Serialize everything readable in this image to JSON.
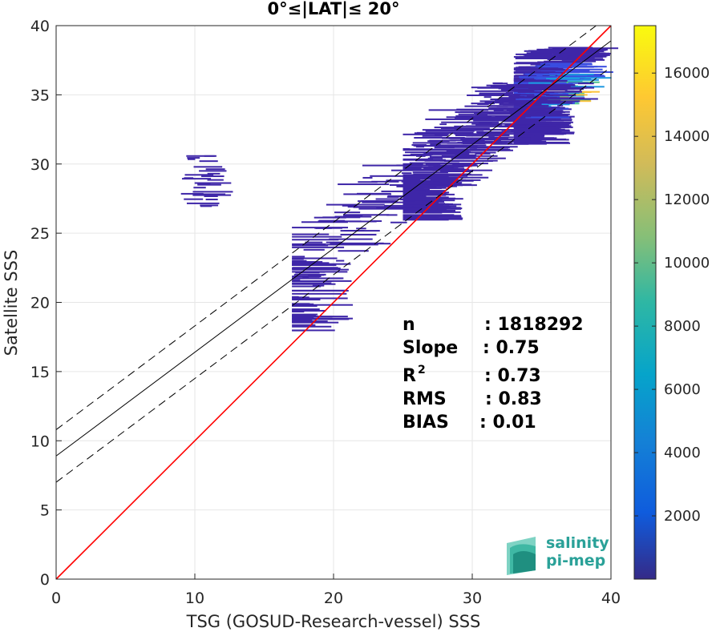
{
  "chart_data": {
    "type": "heatmap",
    "title": "0°≤|LAT|≤ 20°",
    "xlabel": "TSG (GOSUD-Research-vessel) SSS",
    "ylabel": "Satellite SSS",
    "xlim": [
      0,
      40
    ],
    "ylim": [
      0,
      40
    ],
    "xticks": [
      "0",
      "10",
      "20",
      "30",
      "40"
    ],
    "yticks": [
      "0",
      "5",
      "10",
      "15",
      "20",
      "25",
      "30",
      "35",
      "40"
    ],
    "grid": true,
    "colorbar": {
      "range": [
        0,
        17500
      ],
      "ticks": [
        "2000",
        "4000",
        "6000",
        "8000",
        "10000",
        "12000",
        "14000",
        "16000"
      ],
      "colormap": "parula"
    },
    "lines": [
      {
        "kind": "identity",
        "slope": 1,
        "intercept": 0,
        "color": "#ff0000"
      },
      {
        "kind": "regression",
        "slope": 0.75,
        "intercept": 8.9,
        "color": "#000000"
      },
      {
        "kind": "regression-upper",
        "slope": 0.75,
        "intercept": 10.8,
        "color": "#000000",
        "dash": true
      },
      {
        "kind": "regression-lower",
        "slope": 0.75,
        "intercept": 7.0,
        "color": "#000000",
        "dash": true
      }
    ],
    "density_clusters": [
      {
        "x": [
          33,
          38.5
        ],
        "y": [
          31.5,
          38.5
        ],
        "weight": "high",
        "center": [
          35.2,
          35.0
        ]
      },
      {
        "x": [
          25,
          38
        ],
        "y": [
          26,
          36
        ],
        "weight": "medium"
      },
      {
        "x": [
          17,
          30
        ],
        "y": [
          18,
          30
        ],
        "weight": "low"
      },
      {
        "x": [
          9,
          14
        ],
        "y": [
          27,
          31
        ],
        "weight": "sparse"
      }
    ],
    "stats": [
      {
        "label": "n",
        "value": ": 1818292"
      },
      {
        "label": "Slope",
        "value": ": 0.75"
      },
      {
        "label": "R",
        "sup": "2",
        "value": ": 0.73"
      },
      {
        "label": "RMS",
        "value": ": 0.83"
      },
      {
        "label": "BIAS",
        "value": ": 0.01"
      }
    ]
  },
  "logo": {
    "line1": "salinity",
    "line2": "pi-mep",
    "color": "#2aa198"
  }
}
